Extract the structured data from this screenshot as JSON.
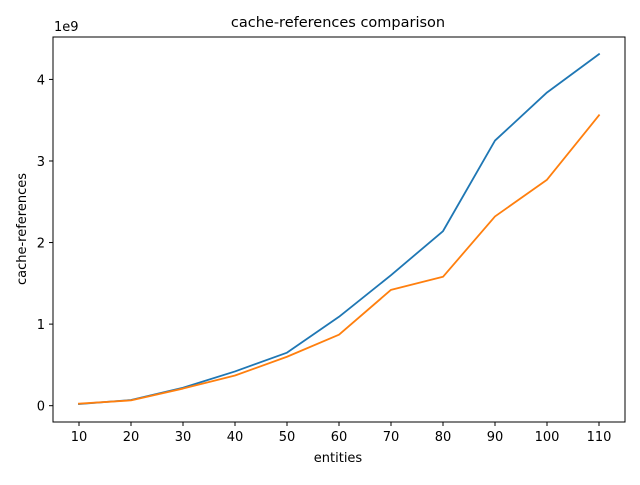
{
  "chart_data": {
    "type": "line",
    "title": "cache-references comparison",
    "xlabel": "entities",
    "ylabel": "cache-references",
    "y_offset_label": "1e9",
    "x": [
      10,
      20,
      30,
      40,
      50,
      60,
      70,
      80,
      90,
      100,
      110
    ],
    "x_tick_labels": [
      "10",
      "20",
      "30",
      "40",
      "50",
      "60",
      "70",
      "80",
      "90",
      "100",
      "110"
    ],
    "y_ticks": [
      0,
      1,
      2,
      3,
      4
    ],
    "y_tick_labels": [
      "0",
      "1",
      "2",
      "3",
      "4"
    ],
    "ylim": [
      -0.2,
      4.52
    ],
    "xlim": [
      5,
      115
    ],
    "grid": false,
    "series": [
      {
        "color": "#1f77b4",
        "values": [
          0.02,
          0.07,
          0.22,
          0.42,
          0.65,
          1.09,
          1.6,
          2.14,
          3.25,
          3.84,
          4.31
        ]
      },
      {
        "color": "#ff7f0e",
        "values": [
          0.025,
          0.065,
          0.21,
          0.37,
          0.6,
          0.87,
          1.42,
          1.58,
          2.32,
          2.77,
          3.56
        ]
      }
    ]
  }
}
